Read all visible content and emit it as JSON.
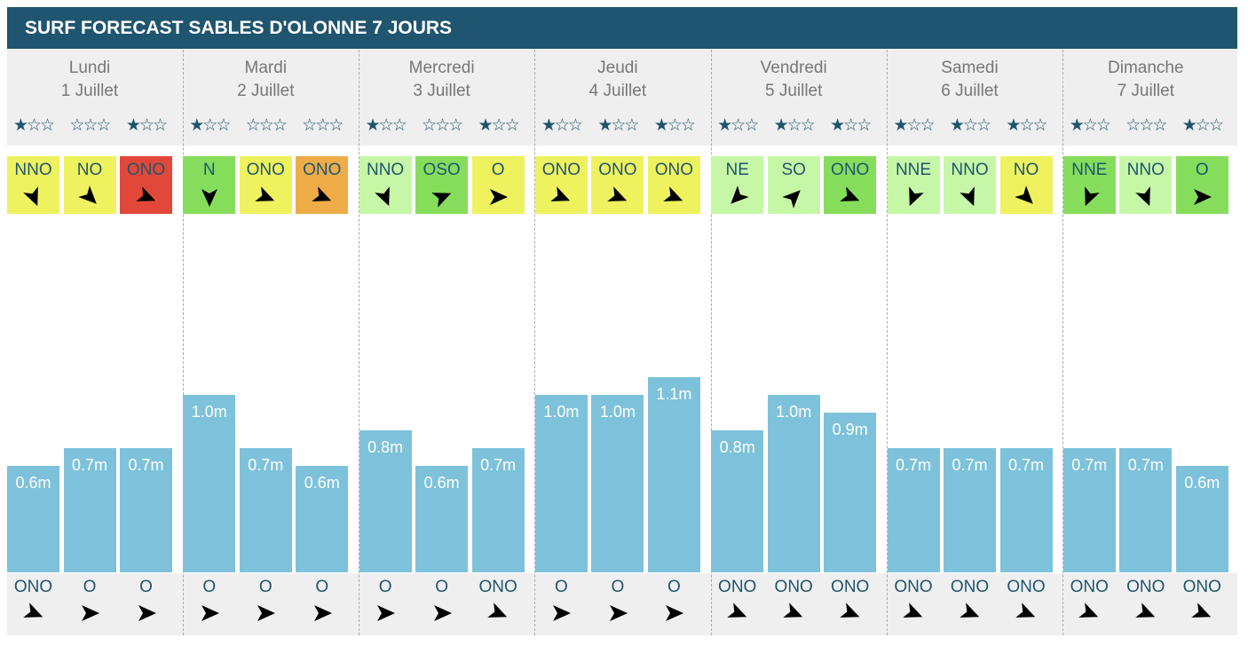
{
  "title": "SURF FORECAST SABLES D'OLONNE 7 JOURS",
  "days": [
    {
      "name": "Lundi",
      "date": "1 Juillet",
      "slots": [
        {
          "stars": 1,
          "wind": "NNO",
          "wind_color": "#eef25e",
          "wave": 0.6,
          "wave_label": "0.6m",
          "swell": "ONO"
        },
        {
          "stars": 0,
          "wind": "NO",
          "wind_color": "#eef25e",
          "wave": 0.7,
          "wave_label": "0.7m",
          "swell": "O"
        },
        {
          "stars": 1,
          "wind": "ONO",
          "wind_color": "#e2483a",
          "wave": 0.7,
          "wave_label": "0.7m",
          "swell": "O"
        }
      ]
    },
    {
      "name": "Mardi",
      "date": "2 Juillet",
      "slots": [
        {
          "stars": 1,
          "wind": "N",
          "wind_color": "#86dd5c",
          "wave": 1.0,
          "wave_label": "1.0m",
          "swell": "O"
        },
        {
          "stars": 0,
          "wind": "ONO",
          "wind_color": "#eef25e",
          "wave": 0.7,
          "wave_label": "0.7m",
          "swell": "O"
        },
        {
          "stars": 0,
          "wind": "ONO",
          "wind_color": "#eeac48",
          "wave": 0.6,
          "wave_label": "0.6m",
          "swell": "O"
        }
      ]
    },
    {
      "name": "Mercredi",
      "date": "3 Juillet",
      "slots": [
        {
          "stars": 1,
          "wind": "NNO",
          "wind_color": "#c6f7a6",
          "wave": 0.8,
          "wave_label": "0.8m",
          "swell": "O"
        },
        {
          "stars": 0,
          "wind": "OSO",
          "wind_color": "#86dd5c",
          "wave": 0.6,
          "wave_label": "0.6m",
          "swell": "O"
        },
        {
          "stars": 1,
          "wind": "O",
          "wind_color": "#eef25e",
          "wave": 0.7,
          "wave_label": "0.7m",
          "swell": "ONO"
        }
      ]
    },
    {
      "name": "Jeudi",
      "date": "4 Juillet",
      "slots": [
        {
          "stars": 1,
          "wind": "ONO",
          "wind_color": "#eef25e",
          "wave": 1.0,
          "wave_label": "1.0m",
          "swell": "O"
        },
        {
          "stars": 1,
          "wind": "ONO",
          "wind_color": "#eef25e",
          "wave": 1.0,
          "wave_label": "1.0m",
          "swell": "O"
        },
        {
          "stars": 1,
          "wind": "ONO",
          "wind_color": "#eef25e",
          "wave": 1.1,
          "wave_label": "1.1m",
          "swell": "O"
        }
      ]
    },
    {
      "name": "Vendredi",
      "date": "5 Juillet",
      "slots": [
        {
          "stars": 1,
          "wind": "NE",
          "wind_color": "#c6f7a6",
          "wave": 0.8,
          "wave_label": "0.8m",
          "swell": "ONO"
        },
        {
          "stars": 1,
          "wind": "SO",
          "wind_color": "#c6f7a6",
          "wave": 1.0,
          "wave_label": "1.0m",
          "swell": "ONO"
        },
        {
          "stars": 1,
          "wind": "ONO",
          "wind_color": "#86dd5c",
          "wave": 0.9,
          "wave_label": "0.9m",
          "swell": "ONO"
        }
      ]
    },
    {
      "name": "Samedi",
      "date": "6 Juillet",
      "slots": [
        {
          "stars": 1,
          "wind": "NNE",
          "wind_color": "#c6f7a6",
          "wave": 0.7,
          "wave_label": "0.7m",
          "swell": "ONO"
        },
        {
          "stars": 1,
          "wind": "NNO",
          "wind_color": "#c6f7a6",
          "wave": 0.7,
          "wave_label": "0.7m",
          "swell": "ONO"
        },
        {
          "stars": 1,
          "wind": "NO",
          "wind_color": "#eef25e",
          "wave": 0.7,
          "wave_label": "0.7m",
          "swell": "ONO"
        }
      ]
    },
    {
      "name": "Dimanche",
      "date": "7 Juillet",
      "slots": [
        {
          "stars": 1,
          "wind": "NNE",
          "wind_color": "#86dd5c",
          "wave": 0.7,
          "wave_label": "0.7m",
          "swell": "ONO"
        },
        {
          "stars": 0,
          "wind": "NNO",
          "wind_color": "#c6f7a6",
          "wave": 0.7,
          "wave_label": "0.7m",
          "swell": "ONO"
        },
        {
          "stars": 1,
          "wind": "O",
          "wind_color": "#86dd5c",
          "wave": 0.6,
          "wave_label": "0.6m",
          "swell": "ONO"
        }
      ]
    }
  ]
}
